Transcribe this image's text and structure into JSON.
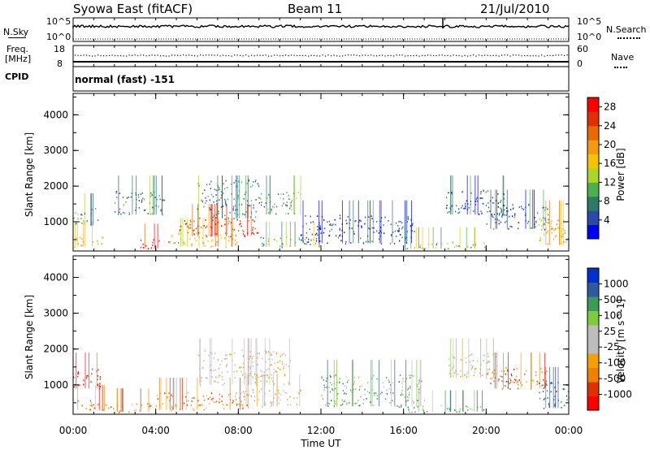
{
  "header": {
    "station": "Syowa East (fitACF)",
    "beam": "Beam 11",
    "date": "21/Jul/2010"
  },
  "nsky_panel": {
    "left_label": "N.Sky",
    "right_label": "N.Search",
    "left_ticks": [
      "10^5",
      "10^0"
    ],
    "right_ticks": [
      "10^5",
      "10^0"
    ]
  },
  "freq_panel": {
    "left_label_1": "Freq.",
    "left_label_2": "[MHz]",
    "left_ticks": [
      "18",
      "8"
    ],
    "right_ticks": [
      "60",
      "0"
    ],
    "right_label": "Nave"
  },
  "cpid_panel": {
    "label": "CPID",
    "text": "normal (fast) -151"
  },
  "time_axis": {
    "label": "Time UT",
    "ticks": [
      "00:00",
      "04:00",
      "08:00",
      "12:00",
      "16:00",
      "20:00",
      "00:00"
    ]
  },
  "colors": {
    "power": [
      "#0000ff",
      "#2a49a8",
      "#2f7a64",
      "#4caf50",
      "#a9d62b",
      "#f5c400",
      "#f39c12",
      "#e66a00",
      "#e03000",
      "#ff0000"
    ],
    "velocity": [
      "#ff0000",
      "#e03000",
      "#f08000",
      "#f5a000",
      "#bdbdbd",
      "#bdbdbd",
      "#7ecb3c",
      "#3f9a58",
      "#2f5aa0",
      "#0030d0"
    ]
  },
  "chart_data": [
    {
      "type": "heatmap",
      "panel": "power",
      "ylabel": "Slant Range [km]",
      "yticks": [
        1000,
        2000,
        3000,
        4000
      ],
      "ylim": [
        180,
        4600
      ],
      "xlim": [
        0,
        24
      ],
      "xlabel": "Time UT",
      "colorbar": {
        "label": "Power [dB]",
        "ticks": [
          4,
          8,
          12,
          16,
          20,
          24,
          28
        ],
        "range": [
          0,
          30
        ]
      },
      "clusters": [
        {
          "t0": 0.0,
          "t1": 1.5,
          "r0": 300,
          "r1": 600,
          "level": 0.55
        },
        {
          "t0": 0.0,
          "t1": 1.2,
          "r0": 900,
          "r1": 1400,
          "level": 0.3
        },
        {
          "t0": 2.0,
          "t1": 4.5,
          "r0": 1200,
          "r1": 1900,
          "level": 0.25
        },
        {
          "t0": 3.2,
          "t1": 4.2,
          "r0": 250,
          "r1": 550,
          "level": 0.9
        },
        {
          "t0": 4.5,
          "t1": 8.0,
          "r0": 300,
          "r1": 700,
          "level": 0.6
        },
        {
          "t0": 5.0,
          "t1": 9.0,
          "r0": 600,
          "r1": 1100,
          "level": 0.85
        },
        {
          "t0": 6.0,
          "t1": 9.0,
          "r0": 1100,
          "r1": 2200,
          "level": 0.25
        },
        {
          "t0": 9.0,
          "t1": 11.0,
          "r0": 1200,
          "r1": 1900,
          "level": 0.3
        },
        {
          "t0": 9.0,
          "t1": 12.0,
          "r0": 300,
          "r1": 600,
          "level": 0.4
        },
        {
          "t0": 11.0,
          "t1": 16.5,
          "r0": 400,
          "r1": 1200,
          "level": 0.15
        },
        {
          "t0": 16.0,
          "t1": 20.0,
          "r0": 250,
          "r1": 450,
          "level": 0.4
        },
        {
          "t0": 18.0,
          "t1": 21.0,
          "r0": 1200,
          "r1": 1900,
          "level": 0.15
        },
        {
          "t0": 20.0,
          "t1": 23.0,
          "r0": 800,
          "r1": 1500,
          "level": 0.2
        },
        {
          "t0": 22.5,
          "t1": 24.0,
          "r0": 350,
          "r1": 1200,
          "level": 0.6
        }
      ]
    },
    {
      "type": "heatmap",
      "panel": "velocity",
      "ylabel": "Slant Range [km]",
      "yticks": [
        1000,
        2000,
        3000,
        4000
      ],
      "ylim": [
        180,
        4600
      ],
      "xlim": [
        0,
        24
      ],
      "xlabel": "Time UT",
      "colorbar": {
        "label": "Velocity [m s^-1]",
        "ticks": [
          -1000,
          -500,
          -100,
          -25,
          25,
          100,
          500,
          1000
        ],
        "range": [
          -1250,
          1250
        ]
      },
      "clusters": [
        {
          "t0": 0.0,
          "t1": 1.5,
          "r0": 300,
          "r1": 600,
          "level": 0.25
        },
        {
          "t0": 0.0,
          "t1": 1.3,
          "r0": 900,
          "r1": 1500,
          "level": 0.05
        },
        {
          "t0": 1.5,
          "t1": 4.0,
          "r0": 250,
          "r1": 500,
          "level": 0.3
        },
        {
          "t0": 4.0,
          "t1": 8.5,
          "r0": 300,
          "r1": 800,
          "level": 0.28
        },
        {
          "t0": 6.0,
          "t1": 10.5,
          "r0": 1000,
          "r1": 2000,
          "level": 0.45
        },
        {
          "t0": 8.0,
          "t1": 11.0,
          "r0": 400,
          "r1": 900,
          "level": 0.45
        },
        {
          "t0": 12.0,
          "t1": 17.0,
          "r0": 400,
          "r1": 1300,
          "level": 0.68
        },
        {
          "t0": 16.0,
          "t1": 20.0,
          "r0": 250,
          "r1": 450,
          "level": 0.7
        },
        {
          "t0": 18.0,
          "t1": 20.5,
          "r0": 1200,
          "r1": 1900,
          "level": 0.5
        },
        {
          "t0": 20.0,
          "t1": 23.0,
          "r0": 900,
          "r1": 1500,
          "level": 0.2
        },
        {
          "t0": 22.5,
          "t1": 24.0,
          "r0": 350,
          "r1": 1100,
          "level": 0.85
        }
      ]
    }
  ]
}
